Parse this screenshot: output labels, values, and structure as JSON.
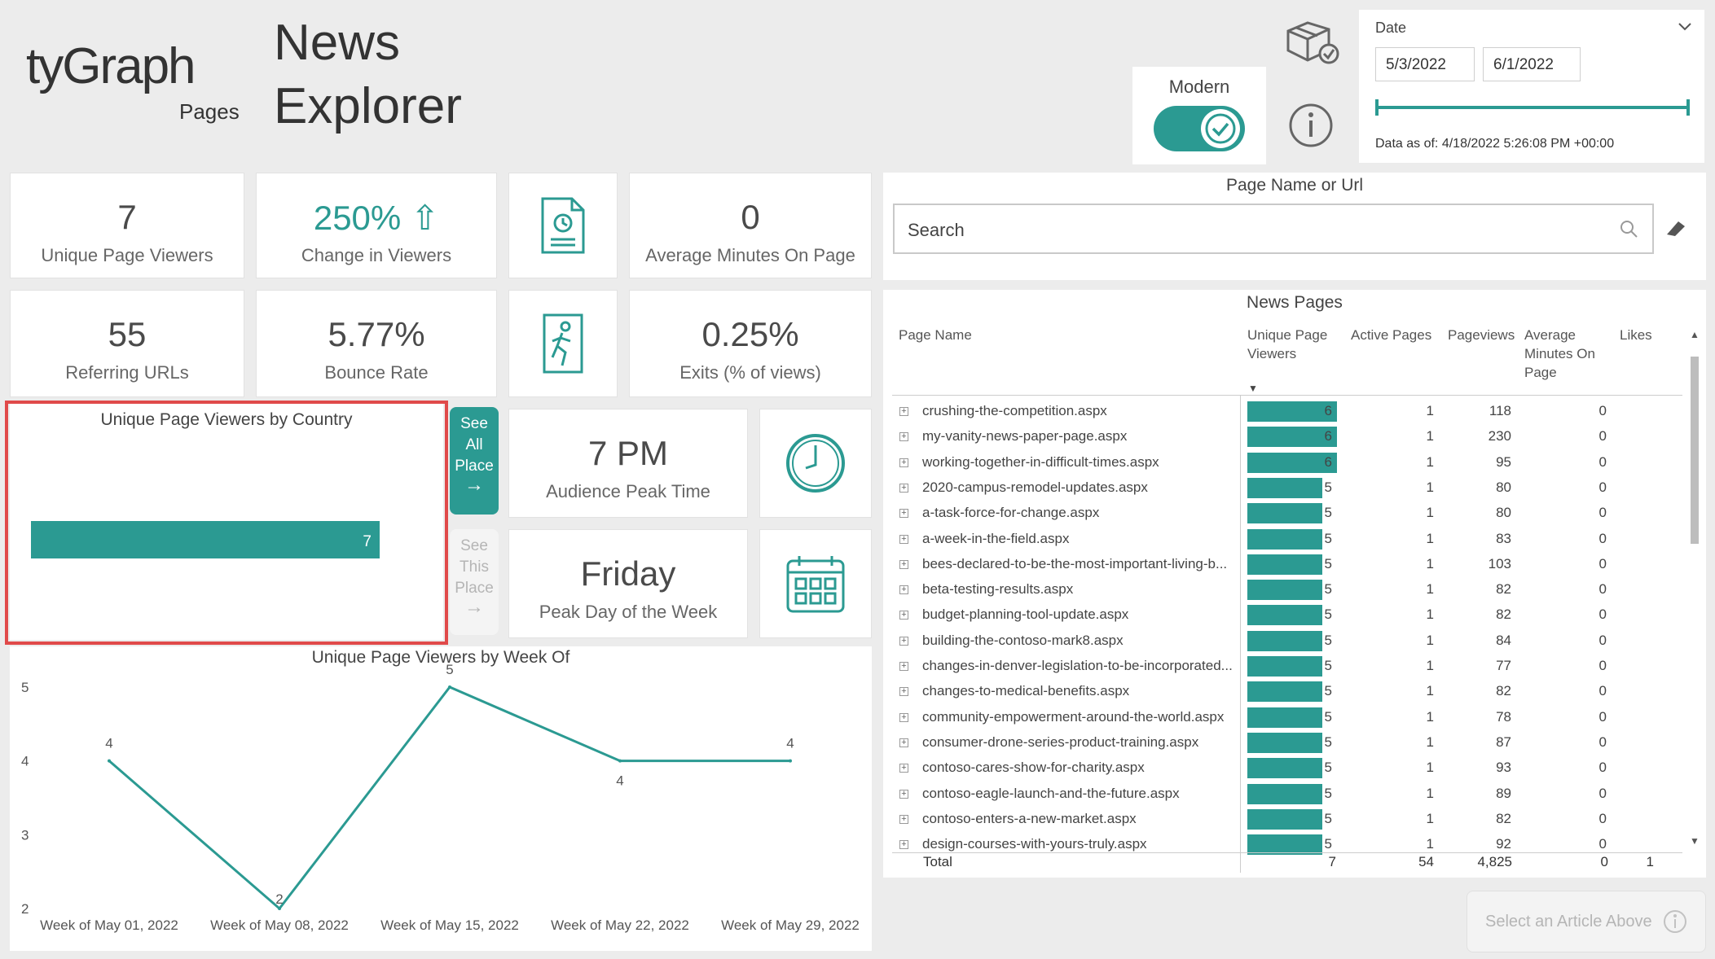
{
  "header": {
    "logo_brand": "tyGraph",
    "logo_sub": "Pages",
    "title_line1": "News",
    "title_line2": "Explorer"
  },
  "toggle": {
    "label": "Modern",
    "state": "on"
  },
  "date_filter": {
    "label": "Date",
    "start": "5/3/2022",
    "end": "6/1/2022",
    "data_as_of": "Data as of: 4/18/2022 5:26:08 PM +00:00"
  },
  "kpis": {
    "unique_viewers": {
      "value": "7",
      "label": "Unique Page Viewers"
    },
    "change_viewers": {
      "value": "250%",
      "label": "Change in Viewers"
    },
    "avg_minutes": {
      "value": "0",
      "label": "Average Minutes On Page"
    },
    "referring_urls": {
      "value": "55",
      "label": "Referring URLs"
    },
    "bounce_rate": {
      "value": "5.77%",
      "label": "Bounce Rate"
    },
    "exits": {
      "value": "0.25%",
      "label": "Exits (% of views)"
    },
    "peak_time": {
      "value": "7 PM",
      "label": "Audience Peak Time"
    },
    "peak_day": {
      "value": "Friday",
      "label": "Peak Day of the Week"
    }
  },
  "buttons": {
    "see_all_place": "See All Place",
    "see_this_place": "See This Place",
    "select_article": "Select an Article Above"
  },
  "search": {
    "title": "Page Name or Url",
    "placeholder": "Search"
  },
  "country_chart": {
    "title": "Unique Page Viewers by Country",
    "bar_value": "7"
  },
  "week_chart": {
    "title": "Unique Page Viewers by Week Of"
  },
  "chart_data": [
    {
      "type": "bar",
      "title": "Unique Page Viewers by Country",
      "categories": [
        ""
      ],
      "values": [
        7
      ]
    },
    {
      "type": "line",
      "title": "Unique Page Viewers by Week Of",
      "x": [
        "Week of May 01, 2022",
        "Week of May 08, 2022",
        "Week of May 15, 2022",
        "Week of May 22, 2022",
        "Week of May 29, 2022"
      ],
      "values": [
        4,
        2,
        5,
        4,
        4
      ],
      "yticks": [
        "5",
        "4",
        "3",
        "2"
      ],
      "ylim": [
        2,
        5
      ]
    }
  ],
  "table": {
    "title": "News Pages",
    "columns": {
      "page_name": "Page Name",
      "unique_viewers": "Unique Page Viewers",
      "active_pages": "Active Pages",
      "pageviews": "Pageviews",
      "avg_minutes": "Average Minutes On Page",
      "likes": "Likes"
    },
    "rows": [
      {
        "name": "crushing-the-competition.aspx",
        "viewers": "6",
        "active": "1",
        "views": "118",
        "minutes": "0"
      },
      {
        "name": "my-vanity-news-paper-page.aspx",
        "viewers": "6",
        "active": "1",
        "views": "230",
        "minutes": "0"
      },
      {
        "name": "working-together-in-difficult-times.aspx",
        "viewers": "6",
        "active": "1",
        "views": "95",
        "minutes": "0"
      },
      {
        "name": "2020-campus-remodel-updates.aspx",
        "viewers": "5",
        "active": "1",
        "views": "80",
        "minutes": "0"
      },
      {
        "name": "a-task-force-for-change.aspx",
        "viewers": "5",
        "active": "1",
        "views": "80",
        "minutes": "0"
      },
      {
        "name": "a-week-in-the-field.aspx",
        "viewers": "5",
        "active": "1",
        "views": "83",
        "minutes": "0"
      },
      {
        "name": "bees-declared-to-be-the-most-important-living-b...",
        "viewers": "5",
        "active": "1",
        "views": "103",
        "minutes": "0"
      },
      {
        "name": "beta-testing-results.aspx",
        "viewers": "5",
        "active": "1",
        "views": "82",
        "minutes": "0"
      },
      {
        "name": "budget-planning-tool-update.aspx",
        "viewers": "5",
        "active": "1",
        "views": "82",
        "minutes": "0"
      },
      {
        "name": "building-the-contoso-mark8.aspx",
        "viewers": "5",
        "active": "1",
        "views": "84",
        "minutes": "0"
      },
      {
        "name": "changes-in-denver-legislation-to-be-incorporated...",
        "viewers": "5",
        "active": "1",
        "views": "77",
        "minutes": "0"
      },
      {
        "name": "changes-to-medical-benefits.aspx",
        "viewers": "5",
        "active": "1",
        "views": "82",
        "minutes": "0"
      },
      {
        "name": "community-empowerment-around-the-world.aspx",
        "viewers": "5",
        "active": "1",
        "views": "78",
        "minutes": "0"
      },
      {
        "name": "consumer-drone-series-product-training.aspx",
        "viewers": "5",
        "active": "1",
        "views": "87",
        "minutes": "0"
      },
      {
        "name": "contoso-cares-show-for-charity.aspx",
        "viewers": "5",
        "active": "1",
        "views": "93",
        "minutes": "0"
      },
      {
        "name": "contoso-eagle-launch-and-the-future.aspx",
        "viewers": "5",
        "active": "1",
        "views": "89",
        "minutes": "0"
      },
      {
        "name": "contoso-enters-a-new-market.aspx",
        "viewers": "5",
        "active": "1",
        "views": "82",
        "minutes": "0"
      },
      {
        "name": "design-courses-with-yours-truly.aspx",
        "viewers": "5",
        "active": "1",
        "views": "92",
        "minutes": "0"
      }
    ],
    "total": {
      "label": "Total",
      "viewers": "7",
      "active": "54",
      "views": "4,825",
      "minutes": "0",
      "likes": "1"
    }
  },
  "colors": {
    "accent": "#2b9a92",
    "highlight": "#e04a4a"
  },
  "icons": [
    "report-clock-icon",
    "exit-runner-icon",
    "clock-icon",
    "calendar-icon",
    "package-icon",
    "info-icon",
    "search-icon",
    "eraser-icon",
    "chevron-down-icon",
    "arrow-right-icon",
    "check-icon"
  ]
}
